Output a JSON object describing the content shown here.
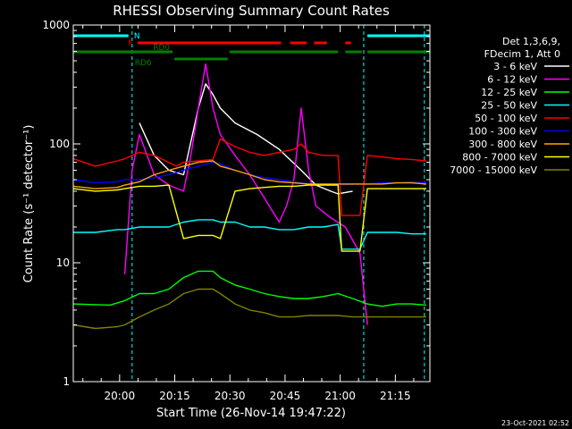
{
  "chart_data": {
    "type": "line",
    "title": "RHESSI Observing Summary Count Rates",
    "xlabel": "Start Time (26-Nov-14 19:47:22)",
    "ylabel": "Count Rate (s⁻¹ detector⁻¹)",
    "yscale": "log",
    "ylim": [
      1,
      1000
    ],
    "xlim_minutes": [
      0,
      97
    ],
    "x_tick_labels": [
      "20:00",
      "20:15",
      "20:30",
      "20:45",
      "21:00",
      "21:15"
    ],
    "x_tick_minutes": [
      12.6,
      27.6,
      42.6,
      57.6,
      72.6,
      87.6
    ],
    "y_tick_labels": [
      "1",
      "10",
      "100",
      "1000"
    ],
    "y_tick_values": [
      1,
      10,
      100,
      1000
    ],
    "legend_header": [
      "Det 1,3,6,9,",
      "FDecim 1, Att 0"
    ],
    "legend_position": "right",
    "footer_timestamp": "23-Oct-2021 02:52",
    "series": [
      {
        "name": "3 - 6 keV",
        "color": "#ffffff",
        "x": [
          0,
          14,
          18,
          22,
          26,
          30,
          34,
          36,
          38,
          40,
          44,
          50,
          56,
          62,
          66,
          70,
          72,
          76,
          80,
          85,
          88
        ],
        "y": [
          null,
          null,
          150,
          80,
          60,
          55,
          200,
          320,
          260,
          200,
          150,
          120,
          90,
          60,
          45,
          40,
          38,
          40,
          null,
          null,
          null
        ]
      },
      {
        "name": "6 - 12 keV",
        "color": "#ff00ff",
        "x": [
          14,
          16,
          18,
          22,
          26,
          30,
          32,
          34,
          36,
          38,
          40,
          44,
          48,
          52,
          56,
          58,
          60,
          62,
          64,
          66,
          70,
          74,
          78,
          80
        ],
        "y": [
          8,
          60,
          120,
          55,
          45,
          40,
          80,
          200,
          470,
          200,
          120,
          80,
          55,
          35,
          22,
          30,
          50,
          200,
          60,
          30,
          24,
          20,
          12,
          3
        ]
      },
      {
        "name": "12 - 25 keV",
        "color": "#00ff00",
        "x": [
          0,
          10,
          14,
          18,
          22,
          26,
          30,
          34,
          38,
          40,
          44,
          48,
          52,
          56,
          60,
          64,
          68,
          72,
          76,
          80,
          84,
          88,
          92,
          96
        ],
        "y": [
          4.5,
          4.4,
          4.8,
          5.5,
          5.5,
          6.0,
          7.5,
          8.5,
          8.5,
          7.5,
          6.5,
          6.0,
          5.5,
          5.2,
          5.0,
          5.0,
          5.2,
          5.5,
          5.0,
          4.5,
          4.3,
          4.5,
          4.5,
          4.4
        ]
      },
      {
        "name": "25 - 50 keV",
        "color": "#00ffff",
        "x": [
          0,
          6,
          12,
          14,
          18,
          22,
          26,
          30,
          34,
          38,
          40,
          44,
          48,
          52,
          56,
          60,
          64,
          68,
          72,
          73,
          78,
          80,
          84,
          88,
          92,
          96
        ],
        "y": [
          18,
          18,
          19,
          19,
          20,
          20,
          20,
          22,
          23,
          23,
          22,
          22,
          20,
          20,
          19,
          19,
          20,
          20,
          21,
          13,
          13,
          18,
          18,
          18,
          17.5,
          17.5
        ]
      },
      {
        "name": "50 - 100 keV",
        "color": "#ff0000",
        "x": [
          0,
          6,
          12,
          14,
          18,
          22,
          26,
          28,
          30,
          34,
          38,
          40,
          44,
          48,
          52,
          56,
          60,
          62,
          64,
          68,
          72,
          73,
          78,
          80,
          84,
          88,
          92,
          96
        ],
        "y": [
          75,
          65,
          72,
          75,
          85,
          80,
          70,
          65,
          70,
          72,
          74,
          110,
          95,
          85,
          80,
          85,
          90,
          100,
          85,
          80,
          80,
          25,
          25,
          80,
          78,
          75,
          74,
          72
        ]
      },
      {
        "name": "100 - 300 keV",
        "color": "#0000ff",
        "x": [
          0,
          6,
          12,
          14,
          18,
          22,
          26,
          30,
          34,
          38,
          40,
          44,
          48,
          52,
          56,
          60,
          64,
          68,
          72,
          76,
          80,
          84,
          88,
          92,
          96
        ],
        "y": [
          50,
          47,
          48,
          50,
          50,
          52,
          55,
          60,
          65,
          70,
          68,
          60,
          55,
          52,
          50,
          48,
          46,
          45,
          45,
          46,
          46,
          47,
          47,
          48,
          47
        ]
      },
      {
        "name": "300 - 800 keV",
        "color": "#ffa500",
        "x": [
          0,
          6,
          12,
          14,
          18,
          22,
          26,
          30,
          34,
          38,
          40,
          44,
          48,
          52,
          56,
          60,
          64,
          68,
          72,
          76,
          80,
          84,
          88,
          92,
          96
        ],
        "y": [
          44,
          42,
          43,
          45,
          48,
          55,
          60,
          65,
          70,
          72,
          65,
          60,
          55,
          50,
          48,
          47,
          46,
          46,
          46,
          46,
          46,
          46,
          47,
          47,
          46
        ]
      },
      {
        "name": "800 - 7000 keV",
        "color": "#ffff00",
        "x": [
          0,
          6,
          12,
          14,
          18,
          22,
          26,
          30,
          34,
          38,
          40,
          44,
          48,
          52,
          56,
          60,
          64,
          68,
          72,
          73,
          78,
          80,
          84,
          88,
          92,
          96
        ],
        "y": [
          42,
          40,
          41,
          42,
          44,
          44,
          45,
          16,
          17,
          17,
          16,
          40,
          42,
          43,
          44,
          44,
          45,
          45,
          45,
          12.5,
          12.5,
          42,
          42,
          42,
          42,
          42
        ]
      },
      {
        "name": "7000 - 15000 keV",
        "color": "#808000",
        "x": [
          0,
          6,
          12,
          14,
          18,
          22,
          26,
          30,
          34,
          38,
          40,
          44,
          48,
          52,
          56,
          60,
          64,
          68,
          72,
          76,
          80,
          84,
          88,
          92,
          96
        ],
        "y": [
          3.0,
          2.8,
          2.9,
          3.0,
          3.5,
          4.0,
          4.5,
          5.5,
          6.0,
          6.0,
          5.5,
          4.5,
          4.0,
          3.8,
          3.5,
          3.5,
          3.6,
          3.6,
          3.6,
          3.5,
          3.5,
          3.5,
          3.5,
          3.5,
          3.5
        ]
      }
    ],
    "flag_bars": [
      {
        "label": "N",
        "color": "#00ffff",
        "segments": [
          [
            0,
            15
          ],
          [
            80,
            97
          ]
        ]
      },
      {
        "label": "F",
        "color": "#ff0000",
        "segments": [
          [
            17.5,
            56.5
          ],
          [
            59,
            63.5
          ],
          [
            65.5,
            69
          ],
          [
            74,
            75.5
          ]
        ]
      },
      {
        "label": "RD0",
        "color": "#008000",
        "segments": [
          [
            0,
            27
          ],
          [
            42.5,
            72
          ],
          [
            74,
            78.5
          ],
          [
            80,
            97
          ]
        ]
      },
      {
        "label": "RD6",
        "color": "#008000",
        "segments": [
          [
            27.5,
            42
          ]
        ]
      }
    ],
    "vertical_markers_minutes": [
      16,
      79,
      95.5
    ]
  }
}
